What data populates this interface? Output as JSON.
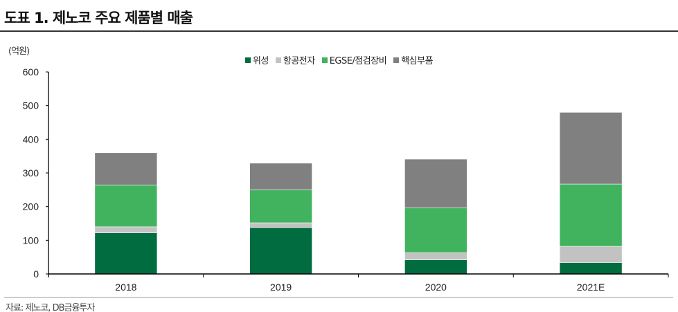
{
  "title": "도표 1. 제노코 주요 제품별 매출",
  "source": "자료: 제노코, DB금융투자",
  "chart_data": {
    "type": "bar",
    "stacked": true,
    "title": "도표 1. 제노코 주요 제품별 매출",
    "ylabel": "(억원)",
    "xlabel": "",
    "ylim": [
      0,
      600
    ],
    "yticks": [
      0,
      100,
      200,
      300,
      400,
      500,
      600
    ],
    "categories": [
      "2018",
      "2019",
      "2020",
      "2021E"
    ],
    "legend_position": "top-center",
    "grid": false,
    "series": [
      {
        "name": "위성",
        "color": "#006c3f",
        "values": [
          122,
          138,
          42,
          34
        ]
      },
      {
        "name": "항공전자",
        "color": "#c2c2c2",
        "values": [
          18,
          14,
          21,
          48
        ]
      },
      {
        "name": "EGSE/점검장비",
        "color": "#41b35e",
        "values": [
          124,
          98,
          133,
          185
        ]
      },
      {
        "name": "핵심부품",
        "color": "#808080",
        "values": [
          96,
          79,
          145,
          213
        ]
      }
    ]
  }
}
